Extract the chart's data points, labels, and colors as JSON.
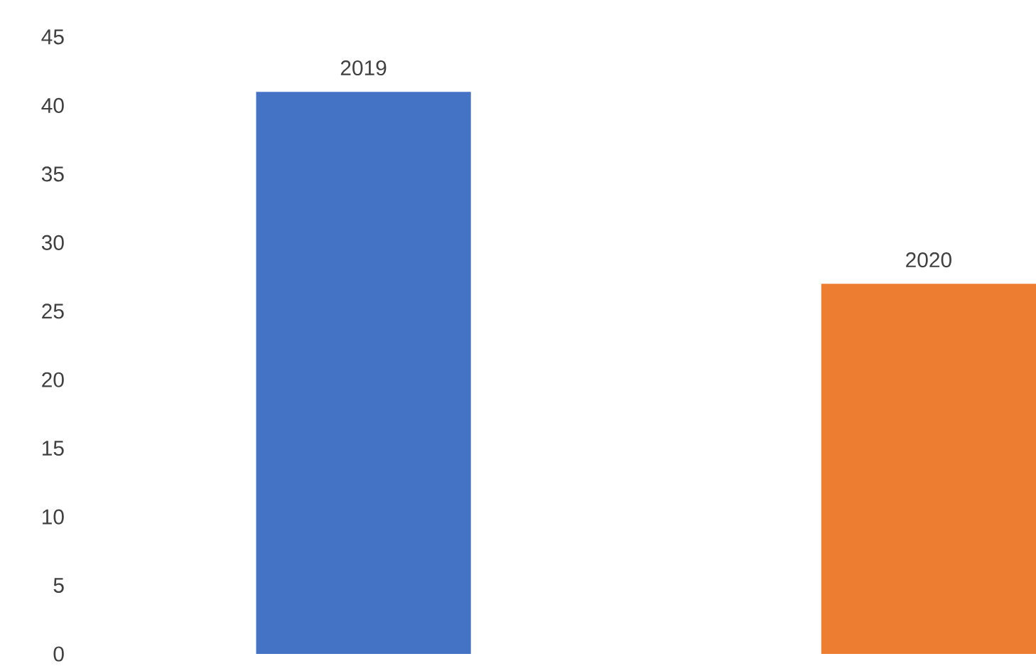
{
  "chart_data": {
    "type": "bar",
    "categories": [
      "2019",
      "2020"
    ],
    "values": [
      41,
      27
    ],
    "colors": [
      "#4472c4",
      "#ed7d31"
    ],
    "ylim": [
      0,
      45
    ],
    "yticks": [
      0,
      5,
      10,
      15,
      20,
      25,
      30,
      35,
      40,
      45
    ]
  }
}
